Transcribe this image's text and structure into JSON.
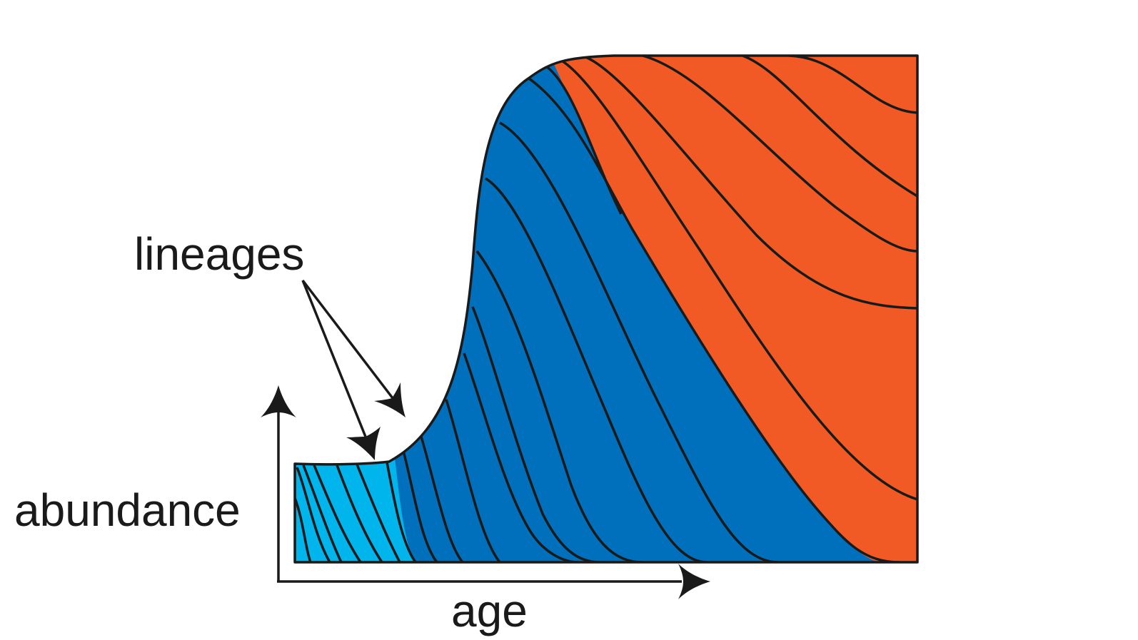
{
  "labels": {
    "lineages": "lineages",
    "abundance": "abundance",
    "age": "age"
  },
  "colors": {
    "light_blue": "#00b4ec",
    "mid_blue": "#0070bd",
    "orange": "#f15a24",
    "outline": "#1a1a1a",
    "background": "#ffffff"
  }
}
